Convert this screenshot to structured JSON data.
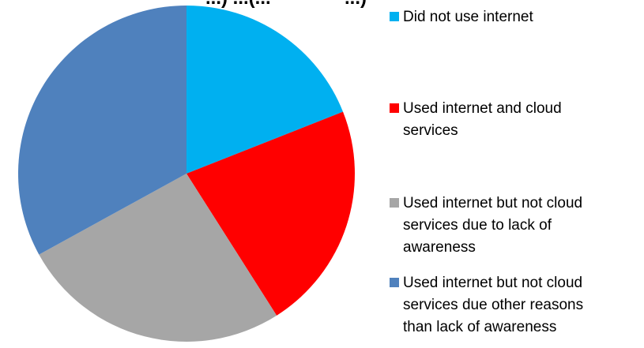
{
  "chart_data": {
    "type": "pie",
    "title_fragment": "...) ...(...              ...)",
    "categories": [
      "Did not use internet",
      "Used internet and cloud services",
      "Used internet but not cloud services due to lack of awareness",
      "Used internet but not cloud services due other reasons than lack of awareness"
    ],
    "values": [
      19,
      22,
      26,
      33
    ],
    "colors": [
      "#00B0F0",
      "#FF0000",
      "#A6A6A6",
      "#4F81BD"
    ],
    "legend_position": "right",
    "start_angle_deg": 0,
    "direction": "clockwise"
  },
  "legend": {
    "items": [
      {
        "label": "Did not use internet",
        "color": "#00B0F0"
      },
      {
        "label": "Used internet and cloud\nservices",
        "color": "#FF0000"
      },
      {
        "label": "Used internet but not cloud\nservices due to lack of\nawareness",
        "color": "#A6A6A6"
      },
      {
        "label": "Used internet but not cloud\nservices due other reasons\nthan lack of awareness",
        "color": "#4F81BD"
      }
    ]
  }
}
